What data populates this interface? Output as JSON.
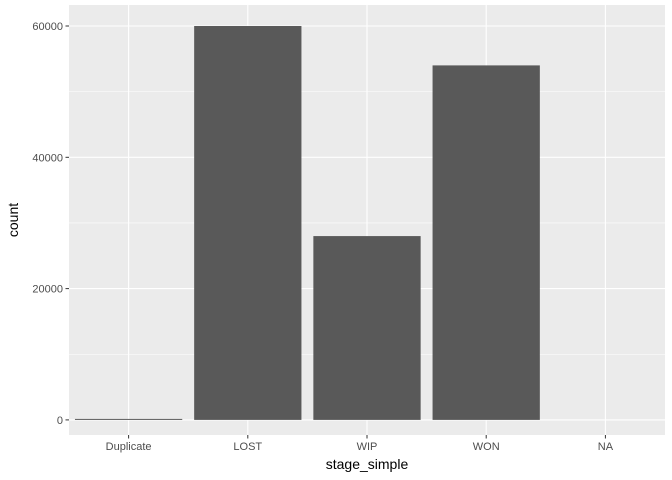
{
  "chart_data": {
    "type": "bar",
    "title": "",
    "xlabel": "stage_simple",
    "ylabel": "count",
    "categories": [
      "Duplicate",
      "LOST",
      "WIP",
      "WON",
      "NA"
    ],
    "values": [
      150,
      60000,
      28000,
      54000,
      0
    ],
    "ylim": [
      -2300,
      63200
    ],
    "yticks": [
      0,
      20000,
      40000,
      60000
    ],
    "ytick_labels": [
      "0",
      "20000",
      "40000",
      "60000"
    ],
    "grid": true,
    "legend": "none",
    "colors": {
      "panel_background": "#ebebeb",
      "grid_major": "#ffffff",
      "bar_fill": "#595959",
      "tick_text": "#4d4d4d",
      "tick_mark": "#333333"
    }
  }
}
